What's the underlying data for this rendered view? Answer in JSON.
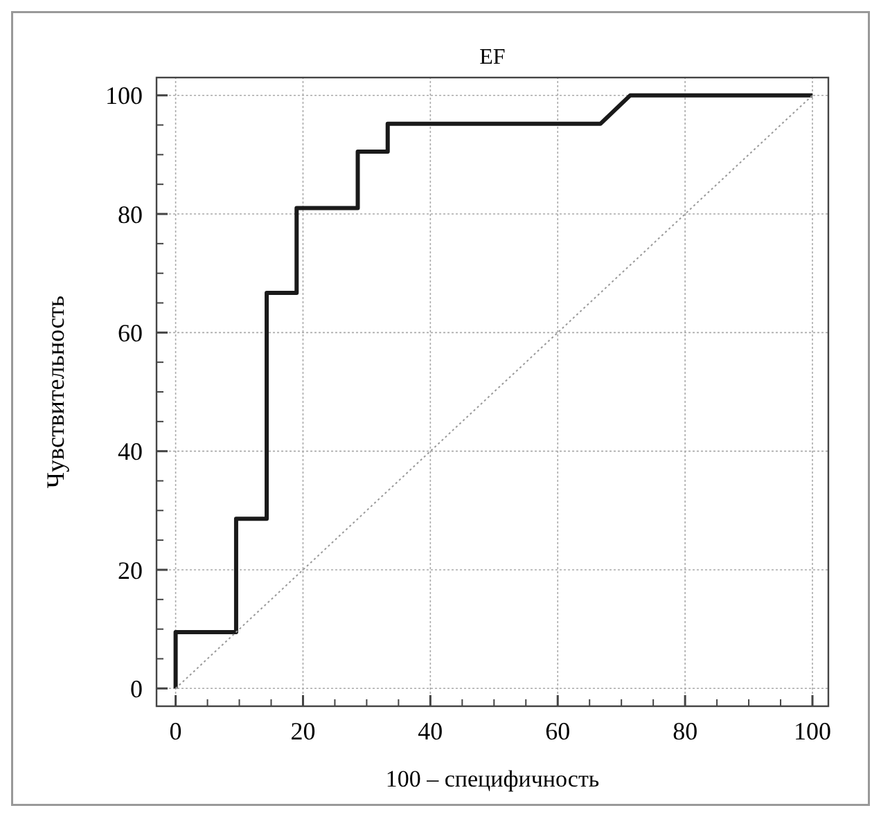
{
  "chart_data": {
    "type": "line",
    "title": "EF",
    "xlabel": "100 – специфичность",
    "ylabel": "Чувствительность",
    "xlim": [
      -3,
      102.5
    ],
    "ylim": [
      -3,
      103
    ],
    "xticks": [
      0,
      {
        "value": 5,
        "label": null
      },
      {
        "value": 10,
        "label": null
      },
      {
        "value": 15,
        "label": null
      },
      20,
      {
        "value": 25,
        "label": null
      },
      {
        "value": 30,
        "label": null
      },
      {
        "value": 35,
        "label": null
      },
      40,
      {
        "value": 45,
        "label": null
      },
      {
        "value": 50,
        "label": null
      },
      {
        "value": 55,
        "label": null
      },
      60,
      {
        "value": 65,
        "label": null
      },
      {
        "value": 70,
        "label": null
      },
      {
        "value": 75,
        "label": null
      },
      80,
      {
        "value": 85,
        "label": null
      },
      {
        "value": 90,
        "label": null
      },
      {
        "value": 95,
        "label": null
      },
      100
    ],
    "yticks": [
      0,
      {
        "value": 5,
        "label": null
      },
      {
        "value": 10,
        "label": null
      },
      {
        "value": 15,
        "label": null
      },
      20,
      {
        "value": 25,
        "label": null
      },
      {
        "value": 30,
        "label": null
      },
      {
        "value": 35,
        "label": null
      },
      40,
      {
        "value": 45,
        "label": null
      },
      {
        "value": 50,
        "label": null
      },
      {
        "value": 55,
        "label": null
      },
      60,
      {
        "value": 65,
        "label": null
      },
      {
        "value": 70,
        "label": null
      },
      {
        "value": 75,
        "label": null
      },
      80,
      {
        "value": 85,
        "label": null
      },
      {
        "value": 90,
        "label": null
      },
      {
        "value": 95,
        "label": null
      },
      100
    ],
    "grid": true,
    "marker": "none",
    "series": [
      {
        "color": "#1a1a1a",
        "line_style": "solid",
        "x": [
          0,
          0,
          9.5,
          9.5,
          14.3,
          14.3,
          19,
          19,
          28.6,
          28.6,
          33.3,
          33.3,
          66.7,
          71.4,
          100
        ],
        "values": [
          0,
          9.5,
          9.5,
          28.6,
          28.6,
          66.7,
          66.7,
          81,
          81,
          90.5,
          90.5,
          95.2,
          95.2,
          100,
          100
        ]
      },
      {
        "color": "#999999",
        "line_style": "dotted",
        "x": [
          0,
          100
        ],
        "values": [
          0,
          100
        ]
      }
    ]
  }
}
